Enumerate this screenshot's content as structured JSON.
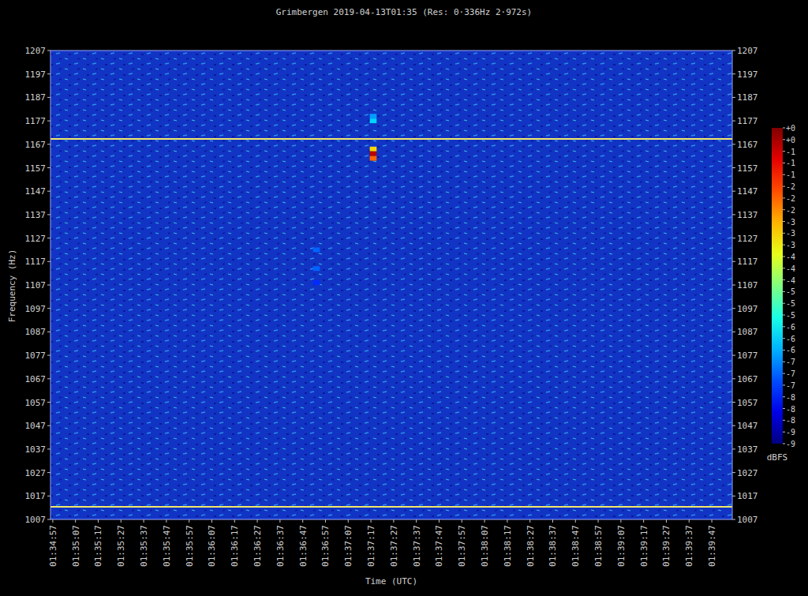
{
  "chart_data": {
    "type": "spectrogram",
    "title": "Grimbergen 2019-04-13T01:35 (Res: 0·336Hz 2·972s)",
    "x_label": "Time (UTC)",
    "y_label": "Frequency (Hz)",
    "xlim": [
      5696,
      5996
    ],
    "xticks": [
      {
        "value": 5697,
        "label": "01:34:57"
      },
      {
        "value": 5707,
        "label": "01:35:07"
      },
      {
        "value": 5717,
        "label": "01:35:17"
      },
      {
        "value": 5727,
        "label": "01:35:27"
      },
      {
        "value": 5737,
        "label": "01:35:37"
      },
      {
        "value": 5747,
        "label": "01:35:47"
      },
      {
        "value": 5757,
        "label": "01:35:57"
      },
      {
        "value": 5767,
        "label": "01:36:07"
      },
      {
        "value": 5777,
        "label": "01:36:17"
      },
      {
        "value": 5787,
        "label": "01:36:27"
      },
      {
        "value": 5797,
        "label": "01:36:37"
      },
      {
        "value": 5807,
        "label": "01:36:47"
      },
      {
        "value": 5817,
        "label": "01:36:57"
      },
      {
        "value": 5827,
        "label": "01:37:07"
      },
      {
        "value": 5837,
        "label": "01:37:17"
      },
      {
        "value": 5847,
        "label": "01:37:27"
      },
      {
        "value": 5857,
        "label": "01:37:37"
      },
      {
        "value": 5867,
        "label": "01:37:47"
      },
      {
        "value": 5877,
        "label": "01:37:57"
      },
      {
        "value": 5887,
        "label": "01:38:07"
      },
      {
        "value": 5897,
        "label": "01:38:17"
      },
      {
        "value": 5907,
        "label": "01:38:27"
      },
      {
        "value": 5917,
        "label": "01:38:37"
      },
      {
        "value": 5927,
        "label": "01:38:47"
      },
      {
        "value": 5937,
        "label": "01:38:57"
      },
      {
        "value": 5947,
        "label": "01:39:07"
      },
      {
        "value": 5957,
        "label": "01:39:17"
      },
      {
        "value": 5967,
        "label": "01:39:27"
      },
      {
        "value": 5977,
        "label": "01:39:37"
      },
      {
        "value": 5987,
        "label": "01:39:47"
      }
    ],
    "ylim": [
      1007,
      1207
    ],
    "yticks": [
      1007,
      1017,
      1027,
      1037,
      1047,
      1057,
      1067,
      1077,
      1087,
      1097,
      1107,
      1117,
      1127,
      1137,
      1147,
      1157,
      1167,
      1177,
      1187,
      1197,
      1207
    ],
    "series": [
      {
        "x": [
          5696,
          5996
        ],
        "values": [
          1169.3,
          1169.3
        ],
        "color": "#f2e86a"
      },
      {
        "x": [
          5696,
          5996
        ],
        "values": [
          1012.4,
          1012.4
        ],
        "color": "#f2e86a"
      }
    ],
    "cells": [
      {
        "x": 5838,
        "y": 1165,
        "value": -3
      },
      {
        "x": 5838,
        "y": 1163,
        "value": -0.5
      },
      {
        "x": 5838,
        "y": 1161,
        "value": -2
      },
      {
        "x": 5838,
        "y": 1177,
        "value": -6
      },
      {
        "x": 5838,
        "y": 1179,
        "value": -6.5
      },
      {
        "x": 5813,
        "y": 1122,
        "value": -7
      },
      {
        "x": 5813,
        "y": 1114,
        "value": -7
      },
      {
        "x": 5813,
        "y": 1108,
        "value": -7.5
      }
    ],
    "color_scale": {
      "label": "dBFS",
      "range": [
        -9,
        0
      ],
      "ticks": [
        {
          "value": 0,
          "label": "+0"
        },
        {
          "value": -0.333,
          "label": "+0"
        },
        {
          "value": -0.667,
          "label": "-1"
        },
        {
          "value": -1,
          "label": "-1"
        },
        {
          "value": -1.333,
          "label": "-1"
        },
        {
          "value": -1.667,
          "label": "-2"
        },
        {
          "value": -2,
          "label": "-2"
        },
        {
          "value": -2.333,
          "label": "-2"
        },
        {
          "value": -2.667,
          "label": "-3"
        },
        {
          "value": -3,
          "label": "-3"
        },
        {
          "value": -3.333,
          "label": "-3"
        },
        {
          "value": -3.667,
          "label": "-4"
        },
        {
          "value": -4,
          "label": "-4"
        },
        {
          "value": -4.333,
          "label": "-4"
        },
        {
          "value": -4.667,
          "label": "-5"
        },
        {
          "value": -5,
          "label": "-5"
        },
        {
          "value": -5.333,
          "label": "-5"
        },
        {
          "value": -5.667,
          "label": "-6"
        },
        {
          "value": -6,
          "label": "-6"
        },
        {
          "value": -6.333,
          "label": "-6"
        },
        {
          "value": -6.667,
          "label": "-7"
        },
        {
          "value": -7,
          "label": "-7"
        },
        {
          "value": -7.333,
          "label": "-7"
        },
        {
          "value": -7.667,
          "label": "-8"
        },
        {
          "value": -8,
          "label": "-8"
        },
        {
          "value": -8.333,
          "label": "-8"
        },
        {
          "value": -8.667,
          "label": "-9"
        },
        {
          "value": -9,
          "label": "-9"
        }
      ]
    }
  }
}
